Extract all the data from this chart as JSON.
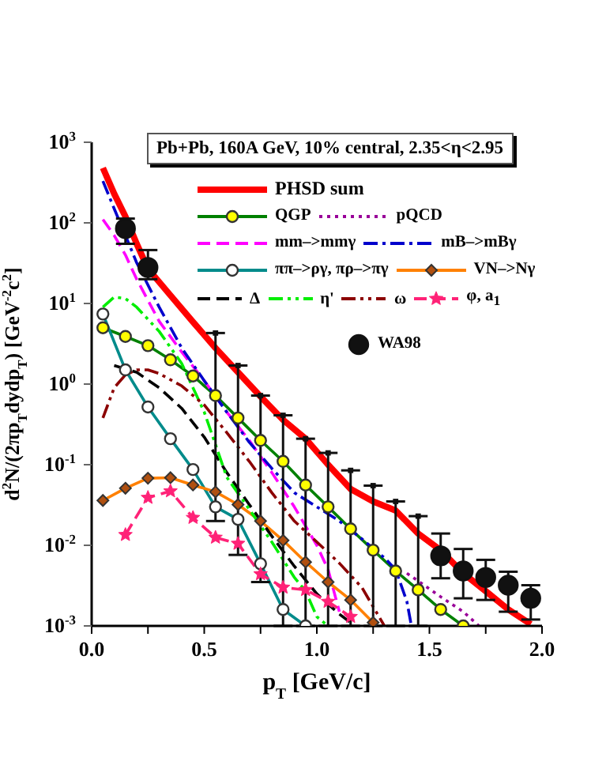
{
  "chart_data": {
    "type": "line",
    "xlabel": "p$_{T}$ [GeV/c]",
    "ylabel": "d$^{2}$N/(2πp$_{T}$dydp$_{T}$)  [GeV$^{-2}$c$^{2}$]",
    "annotations": [
      "Pb+Pb, 160A GeV, 10% central, 2.35<η<2.95"
    ],
    "log": "y",
    "grid": false,
    "legend": "top right",
    "xlim": [
      0.0,
      2.0
    ],
    "xticks": [
      {
        "value": 0,
        "label": "0.0"
      },
      {
        "value": 0.25,
        "label": null
      },
      {
        "value": 0.5,
        "label": "0.5"
      },
      {
        "value": 0.75,
        "label": null
      },
      {
        "value": 1,
        "label": "1.0"
      },
      {
        "value": 1.25,
        "label": null
      },
      {
        "value": 1.5,
        "label": "1.5"
      },
      {
        "value": 1.75,
        "label": null
      },
      {
        "value": 2,
        "label": "2.0"
      }
    ],
    "ylim": [
      0.001,
      1000
    ],
    "yticks": [
      {
        "value": 0.001,
        "label": "10$^{-3}$"
      },
      {
        "value": 0.01,
        "label": "10$^{-2}$"
      },
      {
        "value": 0.1,
        "label": "10$^{-1}$"
      },
      {
        "value": 1,
        "label": "10$^{0}$"
      },
      {
        "value": 10,
        "label": "10$^{1}$"
      },
      {
        "value": 100,
        "label": "10$^{2}$"
      },
      {
        "value": 1000,
        "label": "10$^{3}$"
      }
    ],
    "series": [
      {
        "name": "PHSD sum",
        "color": "#ff0000",
        "line_style": "solid",
        "marker": "none",
        "x": [
          0.05,
          0.1,
          0.15,
          0.2,
          0.25,
          0.35,
          0.45,
          0.55,
          0.65,
          0.75,
          0.85,
          0.95,
          1.05,
          1.15,
          1.25,
          1.35,
          1.45,
          1.55,
          1.65,
          1.75,
          1.85,
          1.95
        ],
        "values": [
          480,
          230,
          120,
          55,
          27,
          12.6,
          5.9,
          2.8,
          1.4,
          0.7,
          0.36,
          0.21,
          0.1,
          0.05,
          0.035,
          0.027,
          0.014,
          0.0087,
          0.0045,
          0.0027,
          0.0016,
          0.00105
        ]
      },
      {
        "name": "QGP",
        "color": "#008000",
        "colors": [
          "#ffff00",
          "#ffff00",
          "#ffff00",
          "#ffff00",
          "#ffff00",
          "#ffff00",
          "#ffff00",
          "#ffff00",
          "#ffff00",
          "#ffff00",
          "#ffff00",
          "#ffff00",
          "#ffff00",
          "#ffff00",
          "#ffff00",
          "#ffff00",
          "#ffff00"
        ],
        "line_style": "solid",
        "marker": "circle",
        "x": [
          0.05,
          0.15,
          0.25,
          0.35,
          0.45,
          0.55,
          0.65,
          0.75,
          0.85,
          0.95,
          1.05,
          1.15,
          1.25,
          1.35,
          1.45,
          1.55,
          1.65
        ],
        "values": [
          5.0,
          3.9,
          3.0,
          2.0,
          1.26,
          0.72,
          0.38,
          0.2,
          0.11,
          0.056,
          0.03,
          0.016,
          0.0087,
          0.0048,
          0.0028,
          0.0016,
          0.001
        ]
      },
      {
        "name": "pQCD",
        "color": "#990099",
        "line_style": "dotted",
        "marker": "none",
        "x": [
          1.4,
          1.45,
          1.55,
          1.65,
          1.72
        ],
        "values": [
          0.0045,
          0.0036,
          0.0023,
          0.0015,
          0.001
        ]
      },
      {
        "name": "mm–>mmγ",
        "color": "#ff00ff",
        "line_style": "dashed",
        "marker": "none",
        "x": [
          0.05,
          0.1,
          0.15,
          0.2,
          0.3,
          0.4,
          0.5,
          0.6,
          0.7,
          0.8,
          0.9,
          1.0,
          1.05,
          1.1
        ],
        "values": [
          110,
          70,
          40,
          20,
          6,
          2.5,
          1.1,
          0.45,
          0.2,
          0.08,
          0.03,
          0.01,
          0.005,
          0.0015
        ]
      },
      {
        "name": "mB–>mBγ",
        "color": "#0000cc",
        "line_style": "dashdot",
        "marker": "none",
        "x": [
          0.05,
          0.1,
          0.15,
          0.2,
          0.3,
          0.4,
          0.5,
          0.6,
          0.7,
          0.8,
          0.9,
          1.0,
          1.1,
          1.2,
          1.3,
          1.35,
          1.4,
          1.42
        ],
        "values": [
          330,
          150,
          70,
          32,
          9,
          2.8,
          1.1,
          0.45,
          0.19,
          0.09,
          0.045,
          0.03,
          0.02,
          0.012,
          0.007,
          0.005,
          0.002,
          0.001
        ]
      },
      {
        "name": "ππ–>ργ, πρ–>πγ",
        "color": "#008b8b",
        "colors": [
          "#ffffff",
          "#ffffff",
          "#ffffff",
          "#ffffff",
          "#ffffff",
          "#ffffff",
          "#ffffff",
          "#ffffff",
          "#ffffff",
          "#ffffff"
        ],
        "line_style": "solid",
        "marker": "circle",
        "x": [
          0.05,
          0.15,
          0.25,
          0.35,
          0.45,
          0.55,
          0.65,
          0.75,
          0.85,
          0.95
        ],
        "values": [
          7.4,
          1.5,
          0.52,
          0.21,
          0.087,
          0.03,
          0.021,
          0.0059,
          0.0016,
          0.001
        ]
      },
      {
        "name": "VN–>Nγ",
        "color": "#ff8000",
        "colors": [
          "#b05010",
          "#b05010",
          "#b05010",
          "#b05010",
          "#b05010",
          "#b05010",
          "#b05010",
          "#b05010",
          "#b05010",
          "#b05010",
          "#b05010",
          "#b05010",
          "#b05010"
        ],
        "line_style": "solid",
        "marker": "diamond",
        "x": [
          0.05,
          0.15,
          0.25,
          0.35,
          0.45,
          0.55,
          0.65,
          0.75,
          0.85,
          0.95,
          1.05,
          1.15,
          1.25
        ],
        "values": [
          0.036,
          0.051,
          0.068,
          0.069,
          0.056,
          0.046,
          0.032,
          0.02,
          0.0115,
          0.0062,
          0.0035,
          0.0021,
          0.0011
        ]
      },
      {
        "name": "Δ",
        "color": "#000000",
        "line_style": "dashed",
        "marker": "none",
        "x": [
          0.1,
          0.2,
          0.3,
          0.4,
          0.5,
          0.6,
          0.7,
          0.8,
          0.9,
          1.0,
          1.1,
          1.15
        ],
        "values": [
          1.7,
          1.4,
          0.9,
          0.5,
          0.22,
          0.08,
          0.032,
          0.013,
          0.0055,
          0.0025,
          0.0014,
          0.0011
        ]
      },
      {
        "name": "η'",
        "color": "#00ee00",
        "line_style": "dashdotdot",
        "marker": "none",
        "x": [
          0.05,
          0.1,
          0.15,
          0.2,
          0.3,
          0.4,
          0.5,
          0.6,
          0.7,
          0.8,
          0.9,
          0.95,
          1.0,
          1.05
        ],
        "values": [
          9,
          12,
          11.5,
          9,
          4.5,
          1.8,
          0.45,
          0.07,
          0.028,
          0.011,
          0.004,
          0.0027,
          0.0013,
          0.001
        ]
      },
      {
        "name": "ω",
        "color": "#8b0000",
        "line_style": "dashdotdot",
        "marker": "none",
        "x": [
          0.05,
          0.1,
          0.15,
          0.2,
          0.25,
          0.3,
          0.4,
          0.5,
          0.6,
          0.7,
          0.8,
          0.9,
          1.0,
          1.1,
          1.2,
          1.3
        ],
        "values": [
          0.38,
          0.9,
          1.3,
          1.5,
          1.5,
          1.35,
          0.95,
          0.55,
          0.25,
          0.11,
          0.045,
          0.02,
          0.011,
          0.006,
          0.003,
          0.001
        ]
      },
      {
        "name": "φ, a$_{1}$",
        "color": "#ff2277",
        "line_style": "dashed",
        "marker": "star",
        "x": [
          0.15,
          0.25,
          0.35,
          0.45,
          0.55,
          0.65,
          0.75,
          0.85,
          0.95,
          1.05,
          1.15
        ],
        "values": [
          0.0135,
          0.039,
          0.047,
          0.022,
          0.0125,
          0.0105,
          0.0044,
          0.003,
          0.0028,
          0.002,
          0.0013
        ]
      },
      {
        "name": "WA98",
        "type": "scatter",
        "color": "#111111",
        "marker": "circle",
        "x": [
          0.15,
          0.25,
          1.55,
          1.65,
          1.75,
          1.85,
          1.95
        ],
        "values": [
          85,
          28,
          0.0074,
          0.0048,
          0.004,
          0.0032,
          0.0022
        ],
        "errors": [
          [
            55,
            113
          ],
          [
            20,
            46
          ],
          [
            0.0039,
            0.014
          ],
          [
            0.0022,
            0.009
          ],
          [
            0.0021,
            0.0066
          ],
          [
            0.0015,
            0.0047
          ],
          [
            0.0012,
            0.0032
          ]
        ]
      },
      {
        "type": "scatter",
        "color": "#111111",
        "marker": "square",
        "x": [
          0.55,
          0.65,
          0.75,
          0.85,
          0.95,
          1.05,
          1.15,
          1.25,
          1.35,
          1.45
        ],
        "values": [
          4.3,
          1.7,
          0.72,
          0.41,
          0.21,
          0.14,
          0.085,
          0.055,
          0.035,
          0.023
        ],
        "errors": [
          [
            0.02,
            4.3
          ],
          [
            0.0076,
            1.7
          ],
          [
            0.0035,
            0.72
          ],
          [
            0.001,
            0.41
          ],
          [
            0.001,
            0.21
          ],
          [
            0.001,
            0.14
          ],
          [
            0.001,
            0.085
          ],
          [
            0.001,
            0.055
          ],
          [
            0.001,
            0.035
          ],
          [
            0.001,
            0.023
          ]
        ]
      }
    ]
  }
}
